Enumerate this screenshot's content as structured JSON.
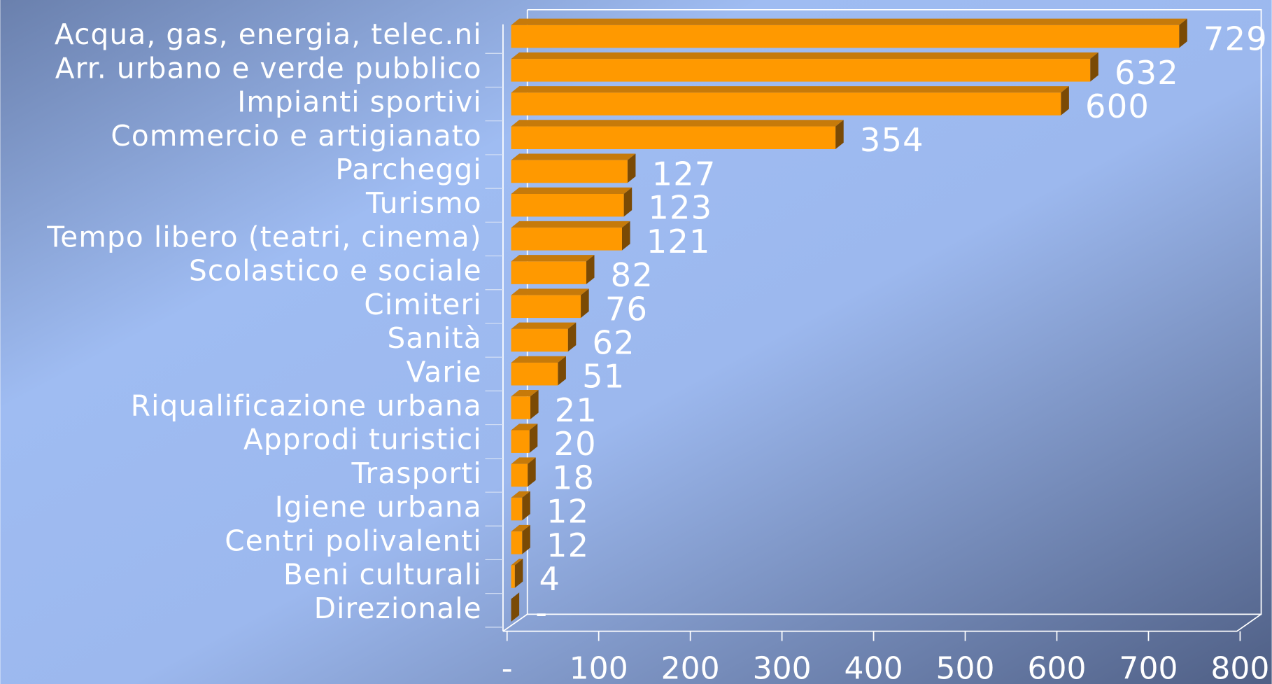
{
  "chart_data": {
    "type": "bar",
    "orientation": "horizontal",
    "three_d": true,
    "categories": [
      "Acqua, gas, energia, telec.ni",
      "Arr. urbano e verde pubblico",
      "Impianti sportivi",
      "Commercio e artigianato",
      "Parcheggi",
      "Turismo",
      "Tempo libero (teatri, cinema)",
      "Scolastico e sociale",
      "Cimiteri",
      "Sanità",
      "Varie",
      "Riqualificazione urbana",
      "Approdi turistici",
      "Trasporti",
      "Igiene urbana",
      "Centri polivalenti",
      "Beni culturali",
      "Direzionale"
    ],
    "values": [
      729,
      632,
      600,
      354,
      127,
      123,
      121,
      82,
      76,
      62,
      51,
      21,
      20,
      18,
      12,
      12,
      4,
      0
    ],
    "value_labels": [
      "729",
      "632",
      "600",
      "354",
      "127",
      "123",
      "121",
      "82",
      "76",
      "62",
      "51",
      "21",
      "20",
      "18",
      "12",
      "12",
      "4",
      "-"
    ],
    "color": "#ff9900",
    "xlim": [
      0,
      800
    ],
    "xticks": [
      {
        "value": 0,
        "label": "-"
      },
      100,
      200,
      300,
      400,
      500,
      600,
      700,
      800
    ]
  }
}
